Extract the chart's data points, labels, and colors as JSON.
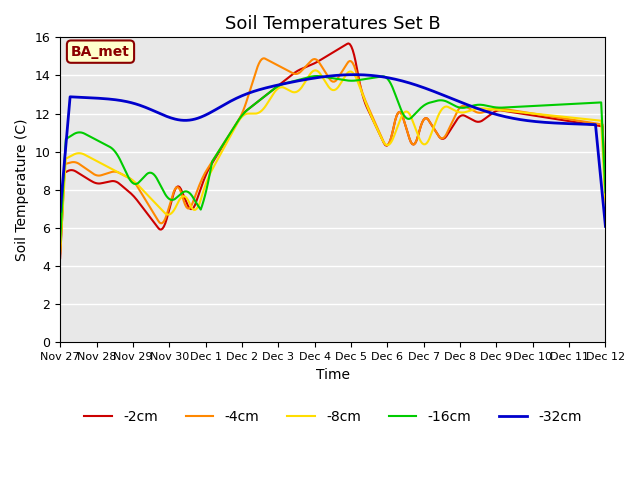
{
  "title": "Soil Temperatures Set B",
  "xlabel": "Time",
  "ylabel": "Soil Temperature (C)",
  "ylim": [
    0,
    16
  ],
  "yticks": [
    0,
    2,
    4,
    6,
    8,
    10,
    12,
    14,
    16
  ],
  "bg_color": "#e8e8e8",
  "fig_color": "#ffffff",
  "annotation_text": "BA_met",
  "annotation_color": "#8b0000",
  "annotation_bg": "#ffffcc",
  "series": {
    "-2cm": {
      "color": "#cc0000",
      "lw": 1.5
    },
    "-4cm": {
      "color": "#ff8800",
      "lw": 1.5
    },
    "-8cm": {
      "color": "#ffdd00",
      "lw": 1.5
    },
    "-16cm": {
      "color": "#00cc00",
      "lw": 1.5
    },
    "-32cm": {
      "color": "#0000cc",
      "lw": 2.0
    }
  },
  "legend_order": [
    "-2cm",
    "-4cm",
    "-8cm",
    "-16cm",
    "-32cm"
  ],
  "x_tick_labels": [
    "Nov 27",
    "Nov 28",
    "Nov 29",
    "Nov 30",
    "Dec 1",
    "Dec 2",
    "Dec 3",
    "Dec 4",
    "Dec 5",
    "Dec 6",
    "Dec 7",
    "Dec 8",
    "Dec 9",
    "Dec 10",
    "Dec 11",
    "Dec 12"
  ],
  "n_points": 385
}
